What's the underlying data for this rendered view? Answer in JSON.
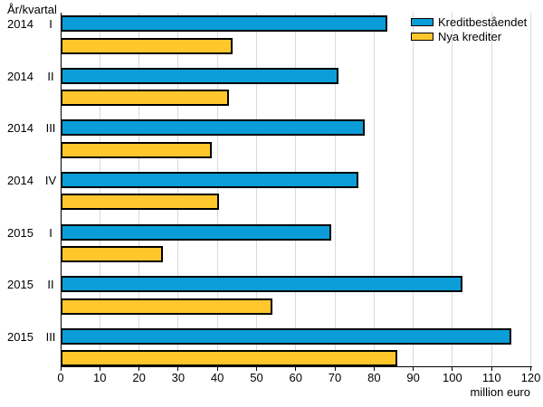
{
  "title": "År/kvartal",
  "x_axis": {
    "unit_label": "million euro",
    "ticks": [
      0,
      10,
      20,
      30,
      40,
      50,
      60,
      70,
      80,
      90,
      100,
      110,
      120
    ]
  },
  "colors": {
    "blue": "#0A9DD8",
    "yellow": "#FFC72C",
    "grid": "#D9D9D9",
    "axis": "#000000",
    "background": "#FFFFFF"
  },
  "category_labels": [
    {
      "year": "2014",
      "quarter": "I"
    },
    {
      "year": "2014",
      "quarter": "II"
    },
    {
      "year": "2014",
      "quarter": "III"
    },
    {
      "year": "2014",
      "quarter": "IV"
    },
    {
      "year": "2015",
      "quarter": "I"
    },
    {
      "year": "2015",
      "quarter": "II"
    },
    {
      "year": "2015",
      "quarter": "III"
    }
  ],
  "chart_data": {
    "type": "bar",
    "orientation": "horizontal",
    "title": "År/kvartal",
    "xlabel": "million euro",
    "xlim": [
      0,
      120
    ],
    "xticks": [
      0,
      10,
      20,
      30,
      40,
      50,
      60,
      70,
      80,
      90,
      100,
      110,
      120
    ],
    "grid": true,
    "legend_position": "top-right",
    "categories": [
      "2014 I",
      "2014 II",
      "2014 III",
      "2014 IV",
      "2015 I",
      "2015 II",
      "2015 III"
    ],
    "series": [
      {
        "name": "Kreditbeståendet",
        "color": "#0A9DD8",
        "values": [
          83.5,
          71,
          77.5,
          76,
          69,
          102.5,
          115
        ]
      },
      {
        "name": "Nya krediter",
        "color": "#FFC72C",
        "values": [
          44,
          43,
          38.5,
          40.5,
          26,
          54,
          86
        ]
      }
    ]
  }
}
